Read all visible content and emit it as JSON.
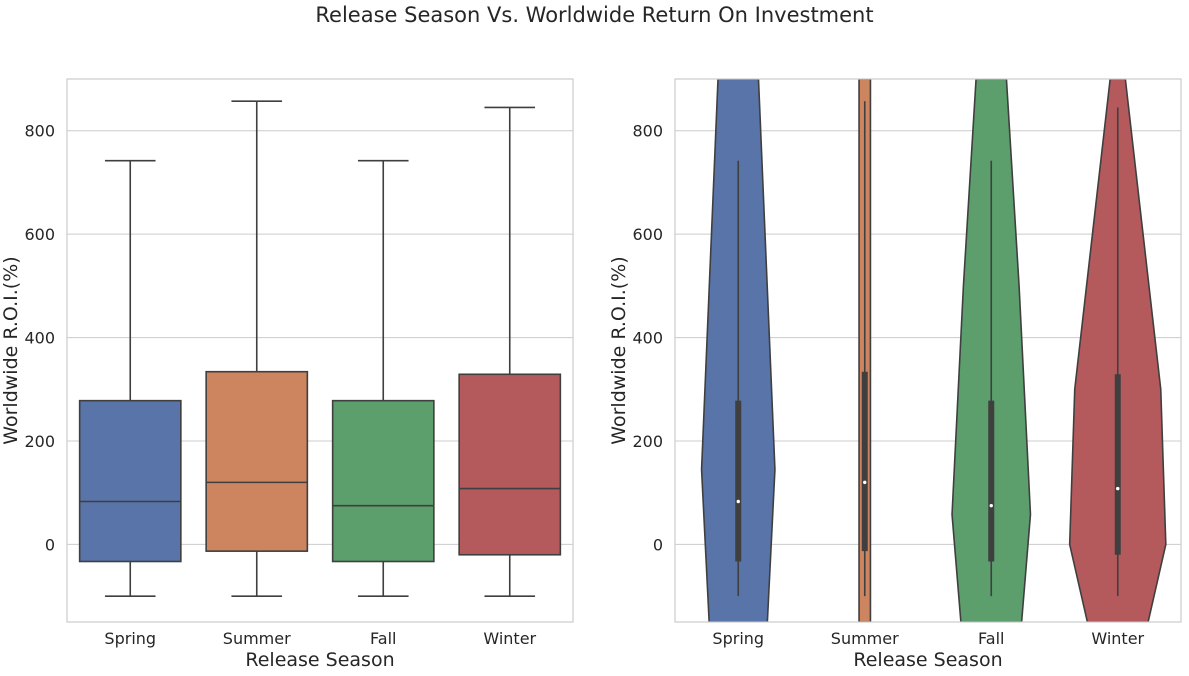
{
  "suptitle": "Release Season Vs. Worldwide Return On Investment",
  "chart_data": [
    {
      "type": "box",
      "xlabel": "Release Season",
      "ylabel": "Worldwide R.O.I.(%)",
      "categories": [
        "Spring",
        "Summer",
        "Fall",
        "Winter"
      ],
      "colors": [
        "#5874a8",
        "#cc855e",
        "#5c9f6d",
        "#b45a5d"
      ],
      "ylim": [
        -150,
        900
      ],
      "yticks": [
        0,
        200,
        400,
        600,
        800
      ],
      "grid": true,
      "boxes": [
        {
          "whisker_low": -100,
          "q1": -33,
          "median": 83,
          "q3": 278,
          "whisker_high": 742
        },
        {
          "whisker_low": -100,
          "q1": -13,
          "median": 120,
          "q3": 334,
          "whisker_high": 857
        },
        {
          "whisker_low": -100,
          "q1": -33,
          "median": 75,
          "q3": 278,
          "whisker_high": 742
        },
        {
          "whisker_low": -100,
          "q1": -20,
          "median": 108,
          "q3": 329,
          "whisker_high": 845
        }
      ]
    },
    {
      "type": "violin",
      "xlabel": "Release Season",
      "ylabel": "Worldwide R.O.I.(%)",
      "categories": [
        "Spring",
        "Summer",
        "Fall",
        "Winter"
      ],
      "colors": [
        "#5874a8",
        "#cc855e",
        "#5c9f6d",
        "#b45a5d"
      ],
      "ylim": [
        -150,
        900
      ],
      "yticks": [
        0,
        200,
        400,
        600,
        800
      ],
      "grid": true,
      "violins": [
        {
          "median": 83,
          "q1": -33,
          "q3": 278,
          "whisker_low": -100,
          "whisker_high": 742,
          "outline": [
            [
              -150,
              0.23
            ],
            [
              145,
              0.29
            ],
            [
              900,
              0.16
            ]
          ]
        },
        {
          "median": 120,
          "q1": -13,
          "q3": 334,
          "whisker_low": -100,
          "whisker_high": 857,
          "outline": [
            [
              -150,
              0.045
            ],
            [
              900,
              0.045
            ]
          ]
        },
        {
          "median": 75,
          "q1": -33,
          "q3": 278,
          "whisker_low": -100,
          "whisker_high": 742,
          "outline": [
            [
              -150,
              0.24
            ],
            [
              58,
              0.31
            ],
            [
              500,
              0.22
            ],
            [
              900,
              0.12
            ]
          ]
        },
        {
          "median": 108,
          "q1": -20,
          "q3": 329,
          "whisker_low": -100,
          "whisker_high": 845,
          "outline": [
            [
              -150,
              0.24
            ],
            [
              0,
              0.38
            ],
            [
              300,
              0.34
            ],
            [
              600,
              0.2
            ],
            [
              900,
              0.06
            ]
          ]
        }
      ]
    }
  ]
}
